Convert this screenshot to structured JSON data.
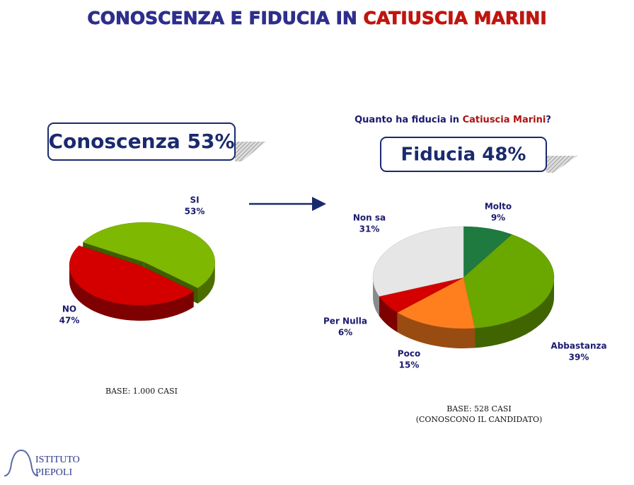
{
  "page": {
    "title": [
      "CONOSCENZA E FIDUCIA IN ",
      "CATIUSCIA MARINI"
    ],
    "logo": [
      "ISTITUTO",
      "PIEPOLI"
    ]
  },
  "chart_data": [
    {
      "type": "pie",
      "box": "Conoscenza 53%",
      "categories": [
        "SI",
        "NO"
      ],
      "values": [
        53,
        47
      ],
      "value_labels": [
        "53%",
        "47%"
      ],
      "colors": [
        "#7fb800",
        "#d40000"
      ],
      "notes": [
        "BASE: 1.000 CASI"
      ]
    },
    {
      "type": "pie",
      "question": [
        "Quanto ha fiducia in ",
        "Catiuscia Marini",
        "?"
      ],
      "box": "Fiducia 48%",
      "categories": [
        "Molto",
        "Abbastanza",
        "Poco",
        "Per Nulla",
        "Non sa"
      ],
      "values": [
        9,
        39,
        15,
        6,
        31
      ],
      "value_labels": [
        "9%",
        "39%",
        "15%",
        "6%",
        "31%"
      ],
      "colors": [
        "#1f7a3f",
        "#6aa800",
        "#ff7f1e",
        "#d40000",
        "#e6e6e6"
      ],
      "notes": [
        "BASE: 528 CASI",
        "(CONOSCONO IL CANDIDATO)"
      ]
    }
  ]
}
